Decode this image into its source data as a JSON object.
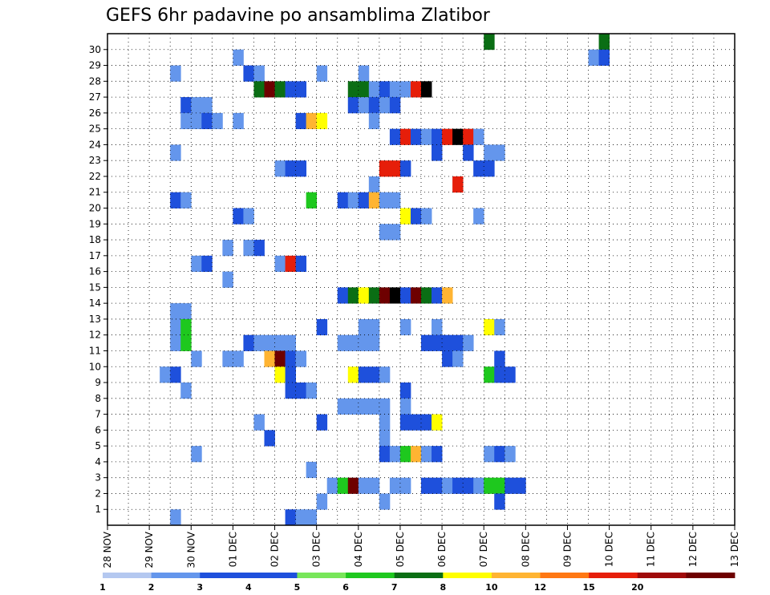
{
  "chart_data": {
    "type": "heatmap",
    "title": "GEFS 6hr padavine po ansamblima Zlatibor",
    "xlabel": "",
    "ylabel": "",
    "x_ticks": [
      "28 NOV",
      "29 NOV",
      "30 NOV",
      "01 DEC",
      "02 DEC",
      "03 DEC",
      "04 DEC",
      "05 DEC",
      "06 DEC",
      "07 DEC",
      "08 DEC",
      "09 DEC",
      "10 DEC",
      "11 DEC",
      "12 DEC",
      "13 DEC"
    ],
    "y_ticks": [
      "1",
      "2",
      "3",
      "4",
      "5",
      "6",
      "7",
      "8",
      "9",
      "10",
      "11",
      "12",
      "13",
      "14",
      "15",
      "16",
      "17",
      "18",
      "19",
      "20",
      "21",
      "22",
      "23",
      "24",
      "25",
      "26",
      "27",
      "28",
      "29",
      "30"
    ],
    "time_steps_per_day": 4,
    "grid": true,
    "colorbar": {
      "placement": "bottom",
      "labels": [
        "1",
        "2",
        "3",
        "4",
        "5",
        "6",
        "7",
        "8",
        "10",
        "12",
        "15",
        "20"
      ],
      "colors": [
        "#b4c8f0",
        "#6496ec",
        "#1e50dc",
        "#1e50dc",
        "#78e65a",
        "#1ec81e",
        "#0a6e14",
        "#ffff00",
        "#ffb432",
        "#ff7814",
        "#e61e0a",
        "#a00a0a",
        "#6e0000"
      ]
    },
    "cells": [
      [
        36,
        30,
        6
      ],
      [
        47,
        30,
        6
      ],
      [
        12,
        29,
        1
      ],
      [
        46,
        29,
        1
      ],
      [
        47,
        29,
        2
      ],
      [
        6,
        28,
        1
      ],
      [
        13,
        28,
        3
      ],
      [
        14,
        28,
        1
      ],
      [
        20,
        28,
        1
      ],
      [
        24,
        28,
        1
      ],
      [
        14,
        27,
        6
      ],
      [
        15,
        27,
        12
      ],
      [
        16,
        27,
        6
      ],
      [
        17,
        27,
        2
      ],
      [
        18,
        27,
        2
      ],
      [
        23,
        27,
        6
      ],
      [
        24,
        27,
        6
      ],
      [
        25,
        27,
        1
      ],
      [
        26,
        27,
        2
      ],
      [
        27,
        27,
        1
      ],
      [
        28,
        27,
        1
      ],
      [
        29,
        27,
        10
      ],
      [
        30,
        27,
        13
      ],
      [
        7,
        26,
        2
      ],
      [
        8,
        26,
        1
      ],
      [
        9,
        26,
        1
      ],
      [
        23,
        26,
        2
      ],
      [
        24,
        26,
        1
      ],
      [
        25,
        26,
        2
      ],
      [
        26,
        26,
        1
      ],
      [
        27,
        26,
        2
      ],
      [
        7,
        25,
        1
      ],
      [
        8,
        25,
        1
      ],
      [
        9,
        25,
        2
      ],
      [
        10,
        25,
        1
      ],
      [
        12,
        25,
        1
      ],
      [
        18,
        25,
        2
      ],
      [
        19,
        25,
        8
      ],
      [
        20,
        25,
        7
      ],
      [
        25,
        25,
        1
      ],
      [
        27,
        24,
        2
      ],
      [
        28,
        24,
        10
      ],
      [
        29,
        24,
        2
      ],
      [
        30,
        24,
        1
      ],
      [
        31,
        24,
        2
      ],
      [
        32,
        24,
        10
      ],
      [
        33,
        24,
        13
      ],
      [
        34,
        24,
        10
      ],
      [
        35,
        24,
        1
      ],
      [
        6,
        23,
        1
      ],
      [
        31,
        23,
        2
      ],
      [
        34,
        23,
        2
      ],
      [
        36,
        23,
        1
      ],
      [
        37,
        23,
        1
      ],
      [
        16,
        22,
        1
      ],
      [
        17,
        22,
        3
      ],
      [
        18,
        22,
        2
      ],
      [
        26,
        22,
        10
      ],
      [
        27,
        22,
        10
      ],
      [
        28,
        22,
        2
      ],
      [
        35,
        22,
        2
      ],
      [
        36,
        22,
        3
      ],
      [
        25,
        21,
        1
      ],
      [
        33,
        21,
        10
      ],
      [
        6,
        20,
        3
      ],
      [
        7,
        20,
        1
      ],
      [
        19,
        20,
        5
      ],
      [
        22,
        20,
        3
      ],
      [
        23,
        20,
        1
      ],
      [
        24,
        20,
        2
      ],
      [
        25,
        20,
        8
      ],
      [
        26,
        20,
        1
      ],
      [
        27,
        20,
        1
      ],
      [
        12,
        19,
        3
      ],
      [
        13,
        19,
        1
      ],
      [
        28,
        19,
        7
      ],
      [
        29,
        19,
        2
      ],
      [
        30,
        19,
        1
      ],
      [
        35,
        19,
        1
      ],
      [
        26,
        18,
        1
      ],
      [
        27,
        18,
        1
      ],
      [
        11,
        17,
        1
      ],
      [
        13,
        17,
        1
      ],
      [
        14,
        17,
        2
      ],
      [
        8,
        16,
        1
      ],
      [
        9,
        16,
        2
      ],
      [
        16,
        16,
        1
      ],
      [
        17,
        16,
        10
      ],
      [
        18,
        16,
        2
      ],
      [
        11,
        15,
        1
      ],
      [
        22,
        14,
        3
      ],
      [
        23,
        14,
        6
      ],
      [
        24,
        14,
        7
      ],
      [
        25,
        14,
        6
      ],
      [
        26,
        14,
        12
      ],
      [
        27,
        14,
        13
      ],
      [
        28,
        14,
        3
      ],
      [
        29,
        14,
        12
      ],
      [
        30,
        14,
        6
      ],
      [
        31,
        14,
        3
      ],
      [
        32,
        14,
        8
      ],
      [
        6,
        13,
        1
      ],
      [
        7,
        13,
        1
      ],
      [
        6,
        12,
        1
      ],
      [
        7,
        12,
        5
      ],
      [
        20,
        12,
        2
      ],
      [
        24,
        12,
        1
      ],
      [
        25,
        12,
        1
      ],
      [
        28,
        12,
        1
      ],
      [
        31,
        12,
        1
      ],
      [
        36,
        12,
        7
      ],
      [
        37,
        12,
        1
      ],
      [
        6,
        11,
        1
      ],
      [
        7,
        11,
        5
      ],
      [
        13,
        11,
        2
      ],
      [
        14,
        11,
        1
      ],
      [
        15,
        11,
        1
      ],
      [
        16,
        11,
        1
      ],
      [
        17,
        11,
        1
      ],
      [
        22,
        11,
        1
      ],
      [
        23,
        11,
        1
      ],
      [
        24,
        11,
        1
      ],
      [
        25,
        11,
        1
      ],
      [
        30,
        11,
        2
      ],
      [
        31,
        11,
        3
      ],
      [
        32,
        11,
        3
      ],
      [
        33,
        11,
        3
      ],
      [
        34,
        11,
        1
      ],
      [
        8,
        10,
        1
      ],
      [
        11,
        10,
        1
      ],
      [
        12,
        10,
        1
      ],
      [
        15,
        10,
        8
      ],
      [
        16,
        10,
        12
      ],
      [
        17,
        10,
        2
      ],
      [
        18,
        10,
        1
      ],
      [
        32,
        10,
        2
      ],
      [
        33,
        10,
        1
      ],
      [
        37,
        10,
        2
      ],
      [
        5,
        9,
        1
      ],
      [
        6,
        9,
        2
      ],
      [
        16,
        9,
        7
      ],
      [
        17,
        9,
        2
      ],
      [
        23,
        9,
        7
      ],
      [
        24,
        9,
        3
      ],
      [
        25,
        9,
        3
      ],
      [
        26,
        9,
        1
      ],
      [
        36,
        9,
        5
      ],
      [
        37,
        9,
        2
      ],
      [
        38,
        9,
        2
      ],
      [
        7,
        8,
        1
      ],
      [
        17,
        8,
        3
      ],
      [
        18,
        8,
        3
      ],
      [
        19,
        8,
        1
      ],
      [
        28,
        8,
        3
      ],
      [
        22,
        7,
        1
      ],
      [
        23,
        7,
        1
      ],
      [
        24,
        7,
        1
      ],
      [
        25,
        7,
        1
      ],
      [
        26,
        7,
        1
      ],
      [
        28,
        7,
        1
      ],
      [
        14,
        6,
        1
      ],
      [
        20,
        6,
        2
      ],
      [
        26,
        6,
        1
      ],
      [
        28,
        6,
        2
      ],
      [
        29,
        6,
        2
      ],
      [
        30,
        6,
        3
      ],
      [
        31,
        6,
        7
      ],
      [
        15,
        5,
        3
      ],
      [
        26,
        5,
        1
      ],
      [
        8,
        4,
        1
      ],
      [
        26,
        4,
        2
      ],
      [
        27,
        4,
        1
      ],
      [
        28,
        4,
        5
      ],
      [
        29,
        4,
        8
      ],
      [
        30,
        4,
        1
      ],
      [
        31,
        4,
        2
      ],
      [
        36,
        4,
        1
      ],
      [
        37,
        4,
        2
      ],
      [
        38,
        4,
        1
      ],
      [
        19,
        3,
        1
      ],
      [
        21,
        2,
        1
      ],
      [
        22,
        2,
        5
      ],
      [
        23,
        2,
        12
      ],
      [
        24,
        2,
        1
      ],
      [
        25,
        2,
        1
      ],
      [
        27,
        2,
        1
      ],
      [
        28,
        2,
        1
      ],
      [
        30,
        2,
        3
      ],
      [
        31,
        2,
        3
      ],
      [
        32,
        2,
        1
      ],
      [
        33,
        2,
        3
      ],
      [
        34,
        2,
        3
      ],
      [
        35,
        2,
        1
      ],
      [
        36,
        2,
        5
      ],
      [
        37,
        2,
        5
      ],
      [
        38,
        2,
        3
      ],
      [
        39,
        2,
        3
      ],
      [
        20,
        1,
        1
      ],
      [
        26,
        1,
        1
      ],
      [
        37,
        1,
        2
      ],
      [
        6,
        0,
        1
      ],
      [
        17,
        0,
        2
      ],
      [
        18,
        0,
        1
      ],
      [
        19,
        0,
        1
      ]
    ]
  }
}
